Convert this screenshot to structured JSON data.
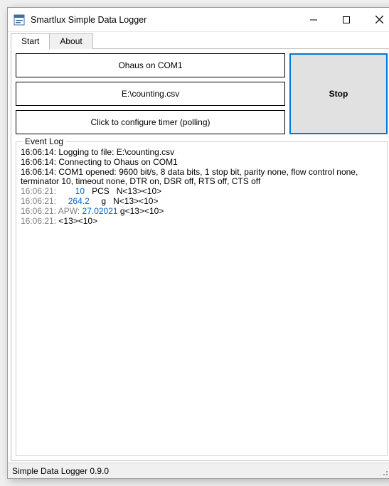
{
  "window": {
    "title": "Smartlux Simple Data Logger"
  },
  "tabs": {
    "start": "Start",
    "about": "About"
  },
  "config": {
    "device": "Ohaus on COM1",
    "file": "E:\\counting.csv",
    "timer": "Click to configure timer (polling)"
  },
  "action": {
    "stop": "Stop"
  },
  "eventlog": {
    "legend": "Event Log",
    "lines": [
      {
        "t": "16:06:14:",
        "msg": " Logging to file: E:\\counting.csv"
      },
      {
        "t": "16:06:14:",
        "msg": " Connecting to Ohaus on COM1"
      },
      {
        "t": "16:06:14:",
        "msg": " COM1 opened: 9600 bit/s, 8 data bits, 1 stop bit, parity none, flow control none, terminator 10, timeout none, DTR on, DSR off, RTS off, CTS off"
      },
      {
        "t": "16:06:21:",
        "val": "        10",
        "unit": "   PCS",
        "suffix": "   N<13><10>"
      },
      {
        "t": "16:06:21:",
        "val": "     264.2",
        "unit": "     g",
        "suffix": "   N<13><10>"
      },
      {
        "t": "16:06:21:",
        "pre": " APW: ",
        "val": "27.02021",
        "unit": " g",
        "suffix": "<13><10>"
      },
      {
        "t": "16:06:21:",
        "suffix": " <13><10>"
      }
    ]
  },
  "statusbar": {
    "text": "Simple Data Logger 0.9.0"
  },
  "colors": {
    "accent": "#0078d7",
    "log_gray": "#808080",
    "log_blue": "#0066cc"
  }
}
